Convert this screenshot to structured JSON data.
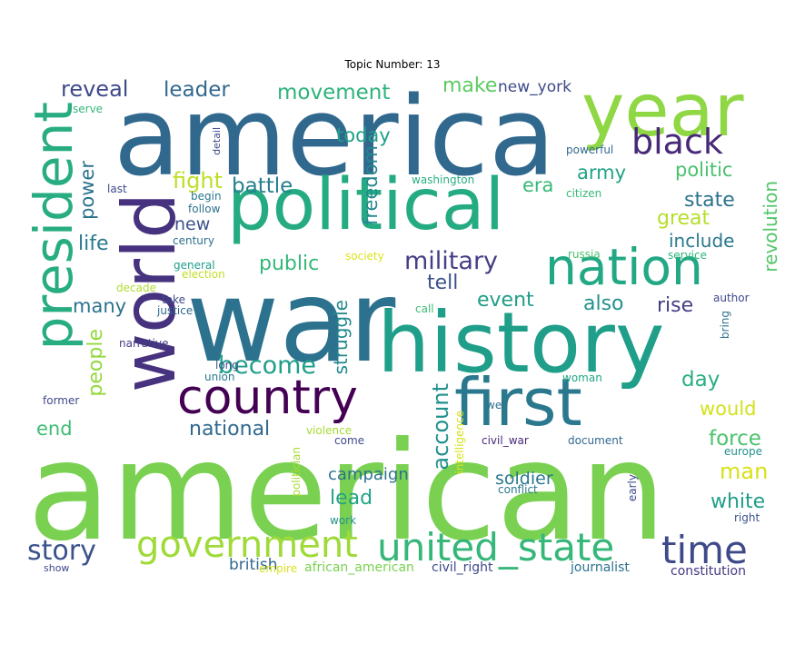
{
  "title": "Topic Number: 13",
  "words": [
    {
      "text": "american",
      "color": "#7ad151"
    },
    {
      "text": "america",
      "color": "#31688e"
    },
    {
      "text": "war",
      "color": "#2c728e"
    },
    {
      "text": "history",
      "color": "#1f9e89"
    },
    {
      "text": "political",
      "color": "#25ab82"
    },
    {
      "text": "year",
      "color": "#8fd744"
    },
    {
      "text": "world",
      "color": "#46327e"
    },
    {
      "text": "president",
      "color": "#27ad81"
    },
    {
      "text": "country",
      "color": "#440154"
    },
    {
      "text": "first",
      "color": "#2a788e"
    },
    {
      "text": "nation",
      "color": "#22a884"
    },
    {
      "text": "government",
      "color": "#a0da39"
    },
    {
      "text": "united_state",
      "color": "#35b779"
    },
    {
      "text": "time",
      "color": "#3e4989"
    },
    {
      "text": "black",
      "color": "#482878"
    },
    {
      "text": "story",
      "color": "#3b528b"
    },
    {
      "text": "military",
      "color": "#433e85"
    },
    {
      "text": "become",
      "color": "#1f9e89"
    },
    {
      "text": "account",
      "color": "#21918c"
    },
    {
      "text": "reveal",
      "color": "#3e4a89"
    },
    {
      "text": "leader",
      "color": "#31688e"
    },
    {
      "text": "movement",
      "color": "#2eb37c"
    },
    {
      "text": "make",
      "color": "#5ec962"
    },
    {
      "text": "new_york",
      "color": "#3e4989"
    },
    {
      "text": "today",
      "color": "#1fa187"
    },
    {
      "text": "fight",
      "color": "#bddf26"
    },
    {
      "text": "battle",
      "color": "#277f8e"
    },
    {
      "text": "freedom",
      "color": "#23888e"
    },
    {
      "text": "politic",
      "color": "#4ac16d"
    },
    {
      "text": "army",
      "color": "#20a386"
    },
    {
      "text": "era",
      "color": "#37b878"
    },
    {
      "text": "state",
      "color": "#2c728e"
    },
    {
      "text": "great",
      "color": "#b5de2b"
    },
    {
      "text": "include",
      "color": "#2a788e"
    },
    {
      "text": "revolution",
      "color": "#52c569"
    },
    {
      "text": "power",
      "color": "#2c728e"
    },
    {
      "text": "new",
      "color": "#3b528b"
    },
    {
      "text": "life",
      "color": "#2a788e"
    },
    {
      "text": "public",
      "color": "#35b779"
    },
    {
      "text": "tell",
      "color": "#3b528b"
    },
    {
      "text": "many",
      "color": "#2c728e"
    },
    {
      "text": "event",
      "color": "#1f9e89"
    },
    {
      "text": "also",
      "color": "#21918c"
    },
    {
      "text": "rise",
      "color": "#433e85"
    },
    {
      "text": "people",
      "color": "#95d840"
    },
    {
      "text": "struggle",
      "color": "#23898e"
    },
    {
      "text": "national",
      "color": "#31688e"
    },
    {
      "text": "day",
      "color": "#29af7f"
    },
    {
      "text": "would",
      "color": "#d2e21b"
    },
    {
      "text": "end",
      "color": "#3dbc74"
    },
    {
      "text": "force",
      "color": "#4ac16d"
    },
    {
      "text": "man",
      "color": "#d8e219"
    },
    {
      "text": "campaign",
      "color": "#2c728e"
    },
    {
      "text": "lead",
      "color": "#20a386"
    },
    {
      "text": "soldier",
      "color": "#2a788e"
    },
    {
      "text": "white",
      "color": "#1f9e89"
    },
    {
      "text": "british",
      "color": "#31688e"
    },
    {
      "text": "african_american",
      "color": "#7ad151"
    },
    {
      "text": "civil_right",
      "color": "#3e4989"
    },
    {
      "text": "journalist",
      "color": "#2c728e"
    },
    {
      "text": "constitution",
      "color": "#443983"
    },
    {
      "text": "serve",
      "color": "#35b779"
    },
    {
      "text": "last",
      "color": "#3e4989"
    },
    {
      "text": "detail",
      "color": "#3e4989"
    },
    {
      "text": "begin",
      "color": "#2a788e"
    },
    {
      "text": "follow",
      "color": "#2c728e"
    },
    {
      "text": "century",
      "color": "#2c728e"
    },
    {
      "text": "general",
      "color": "#1f9e89"
    },
    {
      "text": "election",
      "color": "#c2df23"
    },
    {
      "text": "decade",
      "color": "#b0dd2f"
    },
    {
      "text": "take",
      "color": "#3e4989"
    },
    {
      "text": "justice",
      "color": "#31688e"
    },
    {
      "text": "narrative",
      "color": "#433e85"
    },
    {
      "text": "long",
      "color": "#3b528b"
    },
    {
      "text": "union",
      "color": "#2a788e"
    },
    {
      "text": "former",
      "color": "#3e4989"
    },
    {
      "text": "society",
      "color": "#dde318"
    },
    {
      "text": "call",
      "color": "#3dbc74"
    },
    {
      "text": "washington",
      "color": "#29af7f"
    },
    {
      "text": "powerful",
      "color": "#31688e"
    },
    {
      "text": "citizen",
      "color": "#37b878"
    },
    {
      "text": "russia",
      "color": "#4ac16d"
    },
    {
      "text": "service",
      "color": "#2eb37c"
    },
    {
      "text": "europe",
      "color": "#21918c"
    },
    {
      "text": "author",
      "color": "#3e4a89"
    },
    {
      "text": "bring",
      "color": "#2c728e"
    },
    {
      "text": "woman",
      "color": "#22a884"
    },
    {
      "text": "well",
      "color": "#2c728e"
    },
    {
      "text": "violence",
      "color": "#a8db34"
    },
    {
      "text": "come",
      "color": "#3e4989"
    },
    {
      "text": "civil_war",
      "color": "#482878"
    },
    {
      "text": "document",
      "color": "#31688e"
    },
    {
      "text": "intelligence",
      "color": "#d5e21a"
    },
    {
      "text": "conflict",
      "color": "#2a788e"
    },
    {
      "text": "early",
      "color": "#3e4989"
    },
    {
      "text": "right",
      "color": "#3b528b"
    },
    {
      "text": "politician",
      "color": "#a8db34"
    },
    {
      "text": "work",
      "color": "#21918c"
    },
    {
      "text": "show",
      "color": "#3e4989"
    },
    {
      "text": "empire",
      "color": "#d8e219"
    }
  ]
}
